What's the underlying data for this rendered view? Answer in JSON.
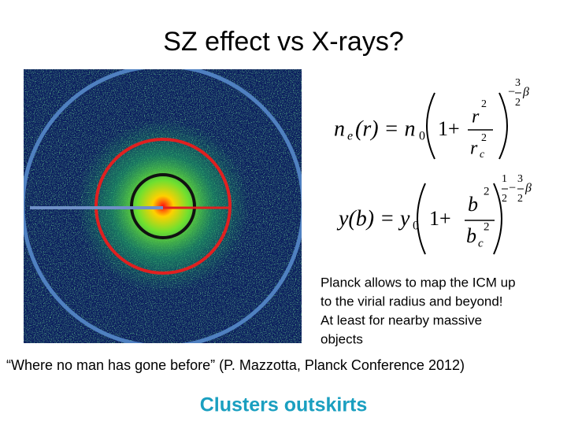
{
  "title": "SZ effect vs X-rays?",
  "equations": [
    {
      "tokens": [
        "n",
        "e",
        "(r) = n",
        "0",
        "1+",
        "r",
        "2",
        "r",
        "c",
        "2",
        "−",
        "3",
        "2",
        "β"
      ]
    },
    {
      "tokens": [
        "y(b) = y",
        "0",
        "1+",
        "b",
        "2",
        "b",
        "c",
        "2",
        "1",
        "2",
        "−",
        "3",
        "2",
        "β"
      ]
    }
  ],
  "note_lines": [
    "Planck allows to map the ICM up",
    "to the virial radius and beyond!",
    "At least for nearby massive",
    "objects"
  ],
  "quote": "“Where no man has gone before” (P. Mazzotta, Planck Conference 2012)",
  "footer": "Clusters outskirts"
}
